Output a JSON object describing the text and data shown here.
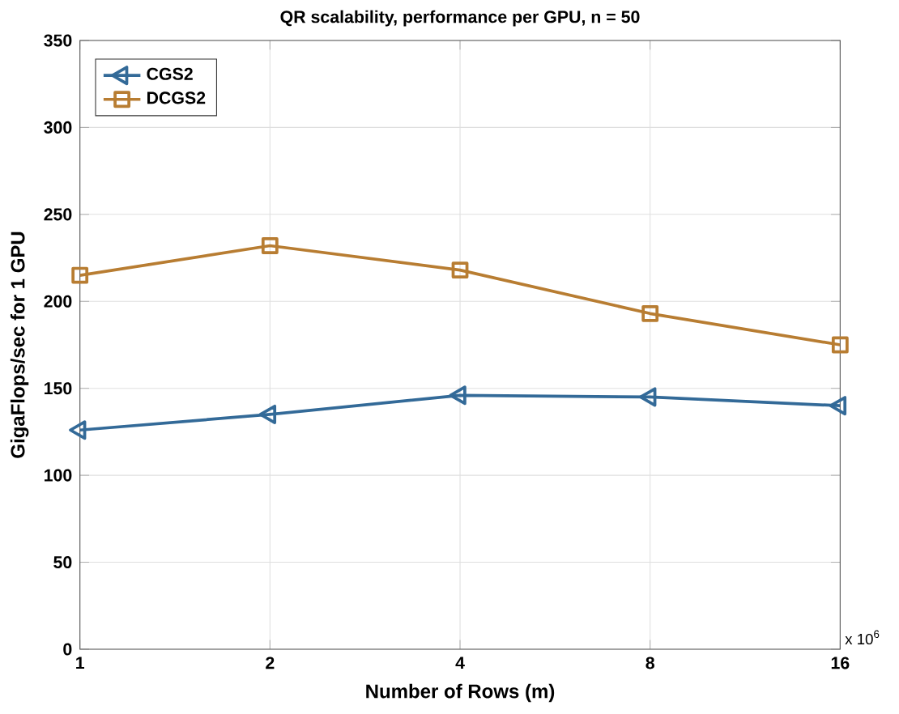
{
  "chart_data": {
    "type": "line",
    "title": "QR scalability, performance per GPU,  n = 50",
    "xlabel": "Number of Rows (m)",
    "ylabel": "GigaFlops/sec for 1 GPU",
    "x": [
      1,
      2,
      4,
      8,
      16
    ],
    "series": [
      {
        "name": "CGS2",
        "color": "#336a98",
        "marker": "triangle",
        "values": [
          126,
          135,
          146,
          145,
          140
        ]
      },
      {
        "name": "DCGS2",
        "color": "#b87d32",
        "marker": "square",
        "values": [
          215,
          232,
          218,
          193,
          175
        ]
      }
    ],
    "xlim": [
      1,
      16
    ],
    "ylim": [
      0,
      350
    ],
    "xticks": [
      1,
      2,
      4,
      8,
      16
    ],
    "yticks": [
      0,
      50,
      100,
      150,
      200,
      250,
      300,
      350
    ],
    "log": "x",
    "grid": true,
    "legend": "top left",
    "line_style": "solid",
    "annotations": [
      "x 10$^{6}$"
    ]
  }
}
